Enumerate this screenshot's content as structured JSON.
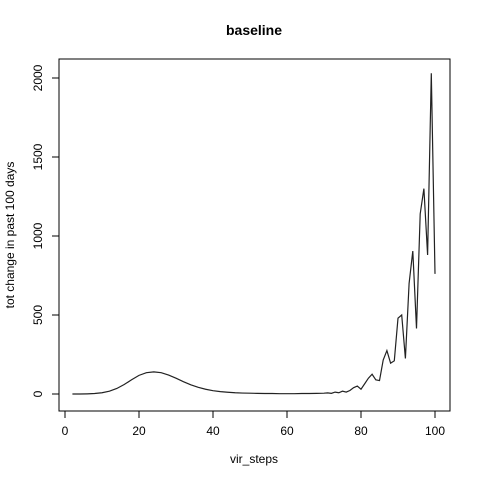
{
  "chart_data": {
    "type": "line",
    "title": "baseline",
    "xlabel": "vir_steps",
    "ylabel": "tot change in past 100 days",
    "xlim": [
      2,
      100
    ],
    "ylim": [
      0,
      2030
    ],
    "xticks": [
      0,
      20,
      40,
      60,
      80,
      100
    ],
    "yticks": [
      0,
      500,
      1000,
      1500,
      2000
    ],
    "grid": false,
    "series": [
      {
        "name": "",
        "x": [
          2,
          4,
          6,
          8,
          10,
          12,
          14,
          16,
          18,
          20,
          22,
          24,
          26,
          28,
          30,
          32,
          34,
          36,
          38,
          40,
          42,
          44,
          46,
          48,
          50,
          52,
          54,
          56,
          58,
          60,
          62,
          64,
          66,
          68,
          70,
          71,
          72,
          73,
          74,
          75,
          76,
          77,
          78,
          79,
          80,
          81,
          82,
          83,
          84,
          85,
          86,
          87,
          88,
          89,
          90,
          91,
          92,
          93,
          94,
          95,
          96,
          97,
          98,
          99,
          100
        ],
        "y": [
          0,
          0,
          1,
          3,
          8,
          18,
          35,
          60,
          90,
          118,
          135,
          140,
          135,
          120,
          100,
          78,
          58,
          42,
          30,
          21,
          15,
          11,
          8,
          6,
          5,
          4,
          3,
          3,
          2,
          2,
          2,
          3,
          3,
          4,
          5,
          7,
          4,
          12,
          8,
          18,
          12,
          22,
          40,
          50,
          30,
          65,
          100,
          125,
          90,
          85,
          215,
          275,
          195,
          210,
          480,
          500,
          225,
          700,
          905,
          415,
          1140,
          1300,
          880,
          2030,
          760
        ]
      }
    ]
  }
}
